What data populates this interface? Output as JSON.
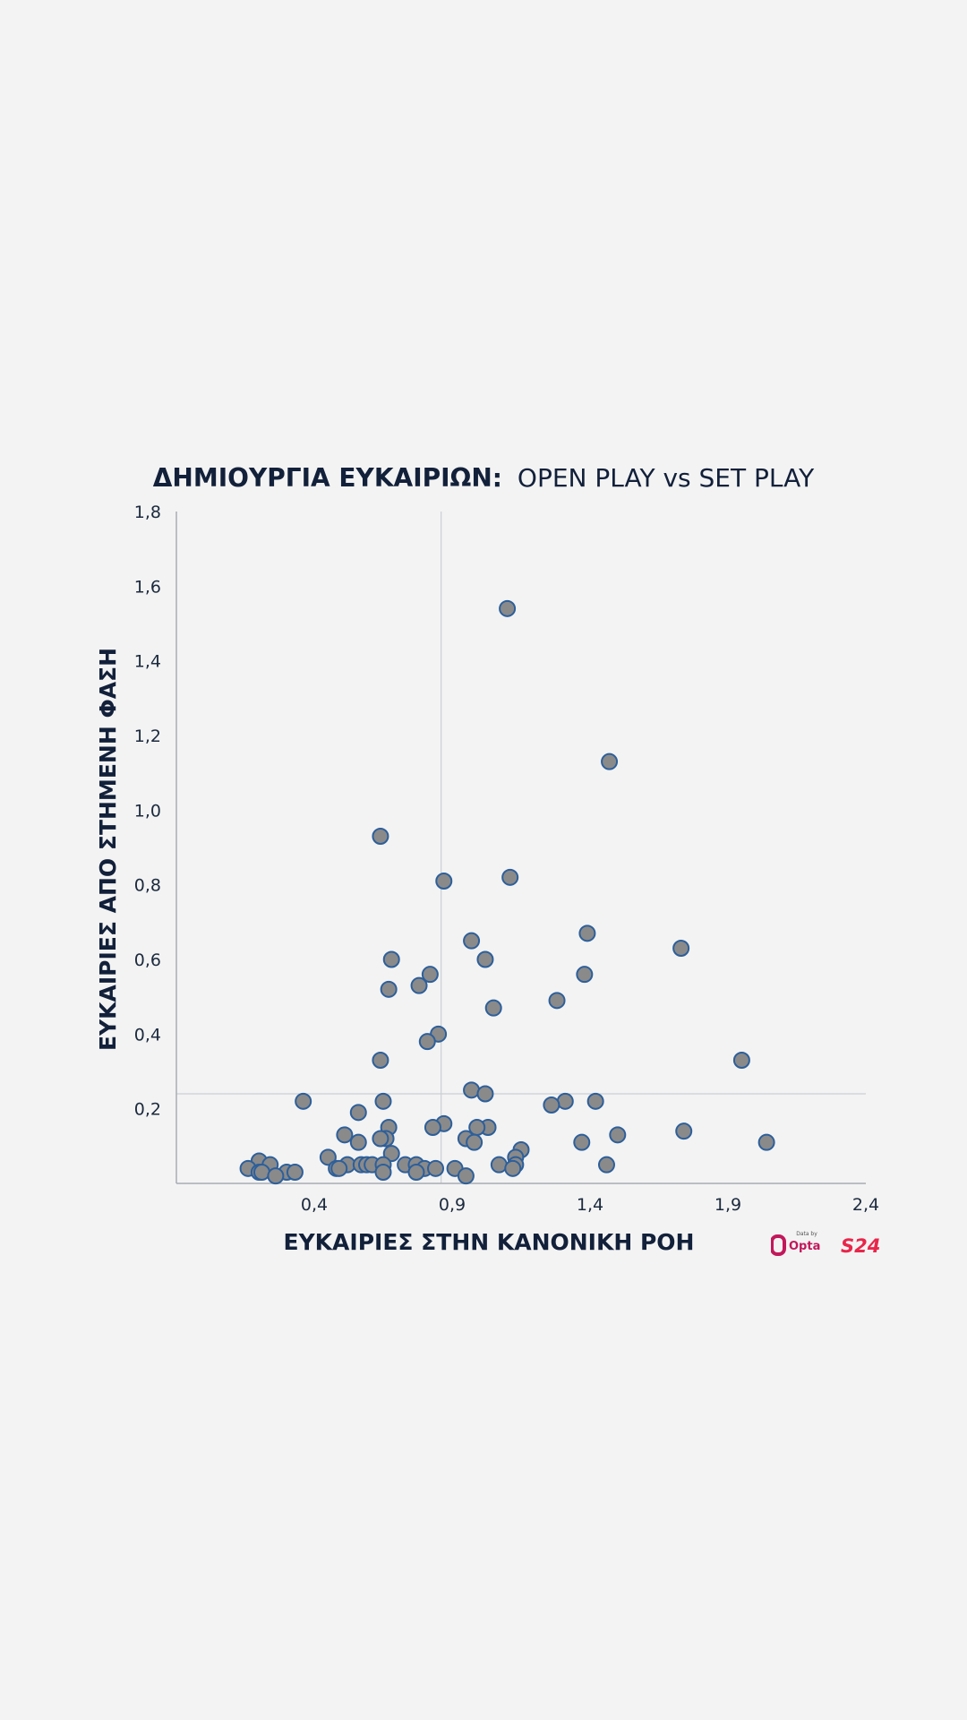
{
  "chart_data": {
    "type": "scatter",
    "title_bold": "ΔΗΜΙΟΥΡΓΙΑ ΕΥΚΑΙΡΙΩΝ:",
    "title_regular": "OPEN PLAY vs SET PLAY",
    "xlabel": "ΕΥΚΑΙΡΙΕΣ ΣΤΗΝ ΚΑΝΟΝΙΚΗ ΡΟΗ",
    "ylabel": "ΕΥΚΑΙΡΙΕΣ ΑΠΟ ΣΤΗΜΕΝΗ ΦΑΣΗ",
    "xlim": [
      -0.1,
      2.4
    ],
    "ylim": [
      0,
      1.8
    ],
    "x_ticks": [
      0.4,
      0.9,
      1.4,
      1.9,
      2.4
    ],
    "x_tick_labels": [
      "0,4",
      "0,9",
      "1,4",
      "1,9",
      "2,4"
    ],
    "y_ticks": [
      0.2,
      0.4,
      0.6,
      0.8,
      1.0,
      1.2,
      1.4,
      1.6,
      1.8
    ],
    "y_tick_labels": [
      "0,2",
      "0,4",
      "0,6",
      "0,8",
      "1,0",
      "1,2",
      "1,4",
      "1,6",
      "1,8"
    ],
    "reference_lines": {
      "x": 0.86,
      "y": 0.24
    },
    "grid": false,
    "marker_fill": "#8a8a8a",
    "marker_stroke": "#2d5f9a",
    "points": [
      [
        1.1,
        1.54
      ],
      [
        1.47,
        1.13
      ],
      [
        0.64,
        0.93
      ],
      [
        0.87,
        0.81
      ],
      [
        1.11,
        0.82
      ],
      [
        1.39,
        0.67
      ],
      [
        0.97,
        0.65
      ],
      [
        1.73,
        0.63
      ],
      [
        0.68,
        0.6
      ],
      [
        1.02,
        0.6
      ],
      [
        1.38,
        0.56
      ],
      [
        0.82,
        0.56
      ],
      [
        0.78,
        0.53
      ],
      [
        0.67,
        0.52
      ],
      [
        1.28,
        0.49
      ],
      [
        1.05,
        0.47
      ],
      [
        0.85,
        0.4
      ],
      [
        0.81,
        0.38
      ],
      [
        0.64,
        0.33
      ],
      [
        1.95,
        0.33
      ],
      [
        0.97,
        0.25
      ],
      [
        1.02,
        0.24
      ],
      [
        0.36,
        0.22
      ],
      [
        0.65,
        0.22
      ],
      [
        1.31,
        0.22
      ],
      [
        1.42,
        0.22
      ],
      [
        1.26,
        0.21
      ],
      [
        0.56,
        0.19
      ],
      [
        0.87,
        0.16
      ],
      [
        1.03,
        0.15
      ],
      [
        0.67,
        0.15
      ],
      [
        0.83,
        0.15
      ],
      [
        0.99,
        0.15
      ],
      [
        1.74,
        0.14
      ],
      [
        0.51,
        0.13
      ],
      [
        1.5,
        0.13
      ],
      [
        0.66,
        0.12
      ],
      [
        0.64,
        0.12
      ],
      [
        0.95,
        0.12
      ],
      [
        0.98,
        0.11
      ],
      [
        0.56,
        0.11
      ],
      [
        1.37,
        0.11
      ],
      [
        2.04,
        0.11
      ],
      [
        1.15,
        0.09
      ],
      [
        0.68,
        0.08
      ],
      [
        0.45,
        0.07
      ],
      [
        1.13,
        0.07
      ],
      [
        0.2,
        0.06
      ],
      [
        0.24,
        0.05
      ],
      [
        0.52,
        0.05
      ],
      [
        0.57,
        0.05
      ],
      [
        0.59,
        0.05
      ],
      [
        0.61,
        0.05
      ],
      [
        0.65,
        0.05
      ],
      [
        1.07,
        0.05
      ],
      [
        1.46,
        0.05
      ],
      [
        0.73,
        0.05
      ],
      [
        0.77,
        0.05
      ],
      [
        1.13,
        0.05
      ],
      [
        0.91,
        0.04
      ],
      [
        0.16,
        0.04
      ],
      [
        0.48,
        0.04
      ],
      [
        0.49,
        0.04
      ],
      [
        0.8,
        0.04
      ],
      [
        0.84,
        0.04
      ],
      [
        1.12,
        0.04
      ],
      [
        0.2,
        0.03
      ],
      [
        0.21,
        0.03
      ],
      [
        0.3,
        0.03
      ],
      [
        0.33,
        0.03
      ],
      [
        0.65,
        0.03
      ],
      [
        0.77,
        0.03
      ],
      [
        0.26,
        0.02
      ],
      [
        0.95,
        0.02
      ]
    ]
  },
  "logos": {
    "opta_caption": "Data by",
    "opta_name": "Opta",
    "s24_name": "S24"
  },
  "colors": {
    "background": "#f3f3f3",
    "title": "#12203a",
    "axis": "#a8adb3",
    "reference_line": "#c9cfd4",
    "opta_mark": "#c2185b",
    "s24_mark": "#e8264a"
  }
}
